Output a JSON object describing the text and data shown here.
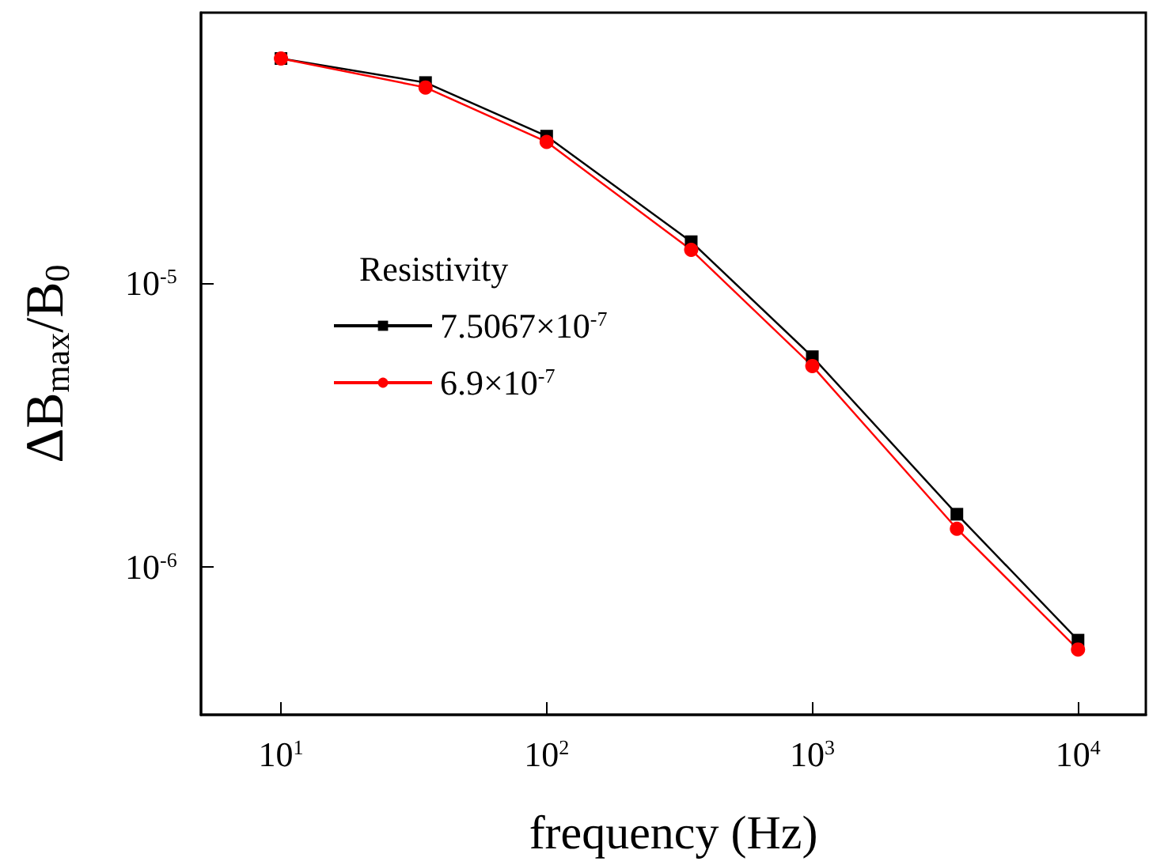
{
  "chart_data": {
    "type": "line",
    "xlabel": "frequency (Hz)",
    "ylabel": "ΔB$_{max}$/B$_{0}$",
    "legend_title": "Resistivity",
    "log": "xy",
    "grid": false,
    "legend": "left",
    "x": [
      10,
      35,
      100,
      350,
      1000,
      3500,
      10000
    ],
    "xlim": [
      5,
      18000
    ],
    "xticks": [
      {
        "value": 10,
        "label": "10$^{1}$"
      },
      {
        "value": 100,
        "label": "10$^{2}$"
      },
      {
        "value": 1000,
        "label": "10$^{3}$"
      },
      {
        "value": 10000,
        "label": "10$^{4}$"
      }
    ],
    "ylim": [
      3e-07,
      9e-05
    ],
    "yticks": [
      {
        "value": 1e-06,
        "label": "10$^{-6}$"
      },
      {
        "value": 1e-05,
        "label": "10$^{-5}$"
      }
    ],
    "series": [
      {
        "name": "7.5067×10$^{-7}$",
        "color": "#000000",
        "marker": "square",
        "values": [
          6.2e-05,
          5.1e-05,
          3.3e-05,
          1.4e-05,
          5.5e-06,
          1.53e-06,
          5.5e-07
        ]
      },
      {
        "name": "6.9×10$^{-7}$",
        "color": "#ff0000",
        "marker": "circle",
        "values": [
          6.2e-05,
          4.9e-05,
          3.15e-05,
          1.31e-05,
          5.1e-06,
          1.36e-06,
          5.1e-07
        ]
      }
    ]
  }
}
